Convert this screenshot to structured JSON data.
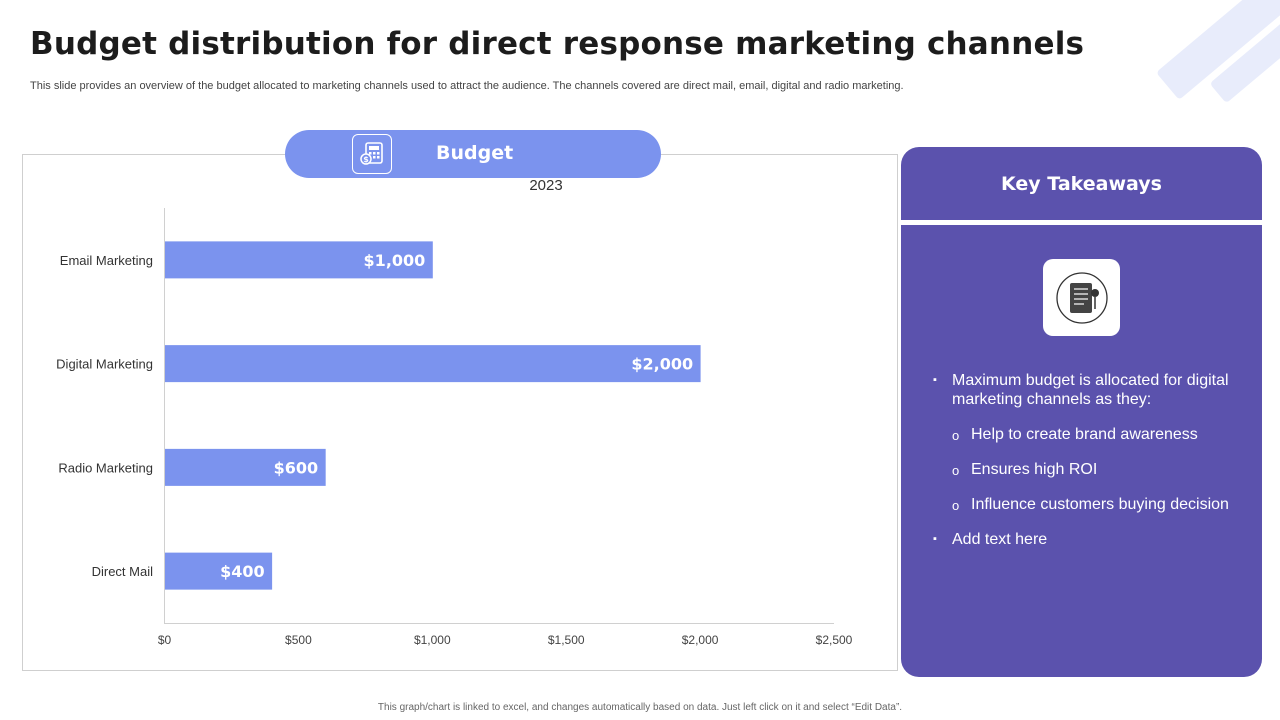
{
  "page": {
    "title": "Budget distribution for direct response marketing channels",
    "subtitle": "This slide provides an overview of the budget allocated to marketing channels used to attract the audience. The channels covered are direct mail, email, digital and radio marketing.",
    "footnote": "This graph/chart is linked to excel, and changes automatically based on data. Just left click on it and select “Edit Data”."
  },
  "budget_header": {
    "label": "Budget",
    "icon": "calculator-icon"
  },
  "chart_data": {
    "type": "bar",
    "orientation": "horizontal",
    "series_name": "2023",
    "categories": [
      "Email Marketing",
      "Digital Marketing",
      "Radio Marketing",
      "Direct Mail"
    ],
    "values": [
      1000,
      2000,
      600,
      400
    ],
    "value_labels": [
      "$1,000",
      "$2,000",
      "$600",
      "$400"
    ],
    "xlim": [
      0,
      2500
    ],
    "x_ticks": [
      0,
      500,
      1000,
      1500,
      2000,
      2500
    ],
    "x_tick_labels": [
      "$0",
      "$500",
      "$1,000",
      "$1,500",
      "$2,000",
      "$2,500"
    ],
    "bar_color": "#7b93ee",
    "grid": false
  },
  "takeaways": {
    "title": "Key Takeaways",
    "icon": "notebook-icon",
    "items": [
      {
        "level": 1,
        "bullet": "▪",
        "text": "Maximum budget is allocated for digital marketing channels  as they:"
      },
      {
        "level": 2,
        "bullet": "o",
        "text": "Help to create brand awareness"
      },
      {
        "level": 2,
        "bullet": "o",
        "text": "Ensures high ROI"
      },
      {
        "level": 2,
        "bullet": "o",
        "text": "Influence  customers buying decision"
      },
      {
        "level": 1,
        "bullet": "▪",
        "text": "Add text here"
      }
    ],
    "bg_color": "#5b52ad"
  }
}
